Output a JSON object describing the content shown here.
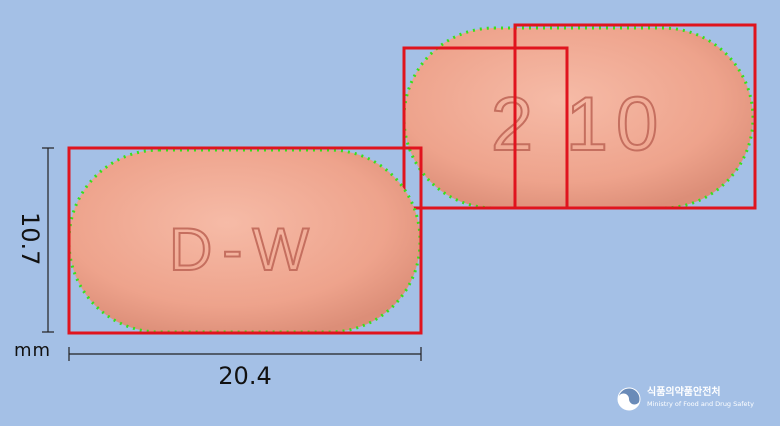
{
  "pill_front": {
    "imprint": "D-W"
  },
  "pill_back": {
    "imprint_left": "2",
    "imprint_right": "10"
  },
  "dimensions": {
    "width": "20.4",
    "height": "10.7",
    "unit": "mm"
  },
  "watermark": {
    "name_kr": "식품의약품안전처",
    "name_en": "Ministry of Food and Drug Safety"
  },
  "colors": {
    "background": "#a4c0e6",
    "pill": "#f0a894",
    "box": "#e0141e",
    "contour": "#37e01a"
  }
}
